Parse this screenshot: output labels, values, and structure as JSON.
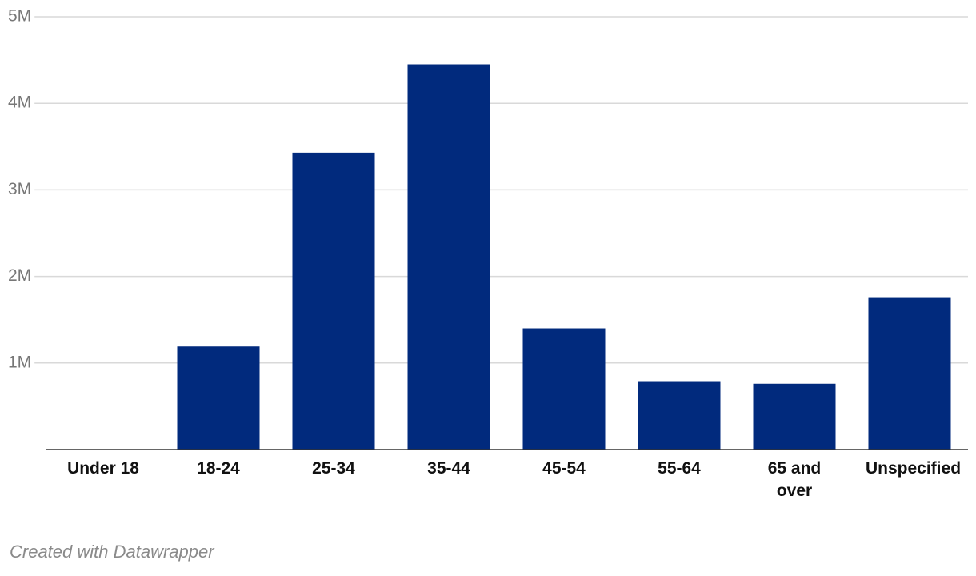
{
  "chart_data": {
    "type": "bar",
    "categories": [
      "Under 18",
      "18-24",
      "25-34",
      "35-44",
      "45-54",
      "55-64",
      "65 and over",
      "Unspecified"
    ],
    "values": [
      0,
      1190000,
      3430000,
      4450000,
      1400000,
      790000,
      760000,
      1760000
    ],
    "color": "#012a7d",
    "ylim": [
      0,
      5000000
    ],
    "yticks": [
      {
        "value": 1000000,
        "label": "1M"
      },
      {
        "value": 2000000,
        "label": "2M"
      },
      {
        "value": 3000000,
        "label": "3M"
      },
      {
        "value": 4000000,
        "label": "4M"
      },
      {
        "value": 5000000,
        "label": "5M"
      }
    ],
    "grid": true,
    "footer": "Created with Datawrapper"
  }
}
